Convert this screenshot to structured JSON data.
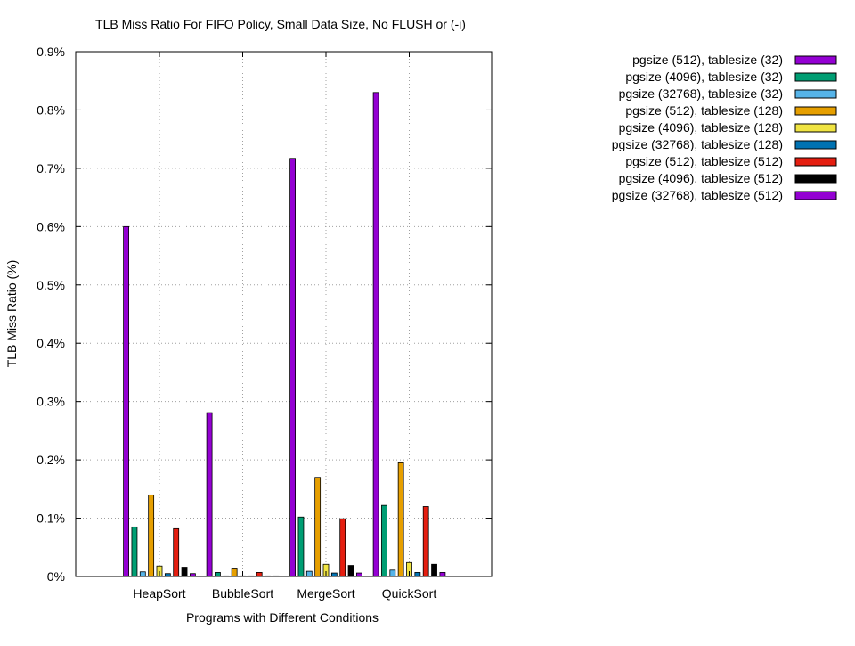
{
  "chart_data": {
    "type": "bar",
    "title": "TLB Miss Ratio For FIFO Policy, Small Data Size, No FLUSH or (-i)",
    "xlabel": "Programs with Different Conditions",
    "ylabel": "TLB Miss Ratio (%)",
    "ylim": [
      0,
      0.9
    ],
    "yticks": [
      0,
      0.1,
      0.2,
      0.3,
      0.4,
      0.5,
      0.6,
      0.7,
      0.8,
      0.9
    ],
    "ytick_labels": [
      "0%",
      "0.1%",
      "0.2%",
      "0.3%",
      "0.4%",
      "0.5%",
      "0.6%",
      "0.7%",
      "0.8%",
      "0.9%"
    ],
    "grid": true,
    "legend_position": "right-outside-top",
    "categories": [
      "HeapSort",
      "BubbleSort",
      "MergeSort",
      "QuickSort"
    ],
    "series": [
      {
        "name": "pgsize (512), tablesize (32)",
        "color": "#9400d3",
        "values": [
          0.6,
          0.281,
          0.717,
          0.83
        ]
      },
      {
        "name": "pgsize (4096), tablesize (32)",
        "color": "#009e73",
        "values": [
          0.085,
          0.007,
          0.102,
          0.122
        ]
      },
      {
        "name": "pgsize (32768), tablesize (32)",
        "color": "#56b4e9",
        "values": [
          0.008,
          0.001,
          0.009,
          0.011
        ]
      },
      {
        "name": "pgsize (512), tablesize (128)",
        "color": "#e69f00",
        "values": [
          0.14,
          0.013,
          0.17,
          0.195
        ]
      },
      {
        "name": "pgsize (4096), tablesize (128)",
        "color": "#f0e442",
        "values": [
          0.018,
          0.001,
          0.021,
          0.024
        ]
      },
      {
        "name": "pgsize (32768), tablesize (128)",
        "color": "#0072b2",
        "values": [
          0.005,
          0.001,
          0.006,
          0.007
        ]
      },
      {
        "name": "pgsize (512), tablesize (512)",
        "color": "#e51e10",
        "values": [
          0.082,
          0.007,
          0.099,
          0.12
        ]
      },
      {
        "name": "pgsize (4096), tablesize (512)",
        "color": "#000000",
        "values": [
          0.016,
          0.001,
          0.019,
          0.021
        ]
      },
      {
        "name": "pgsize (32768), tablesize (512)",
        "color": "#9400d3",
        "values": [
          0.005,
          0.001,
          0.006,
          0.007
        ]
      }
    ]
  }
}
